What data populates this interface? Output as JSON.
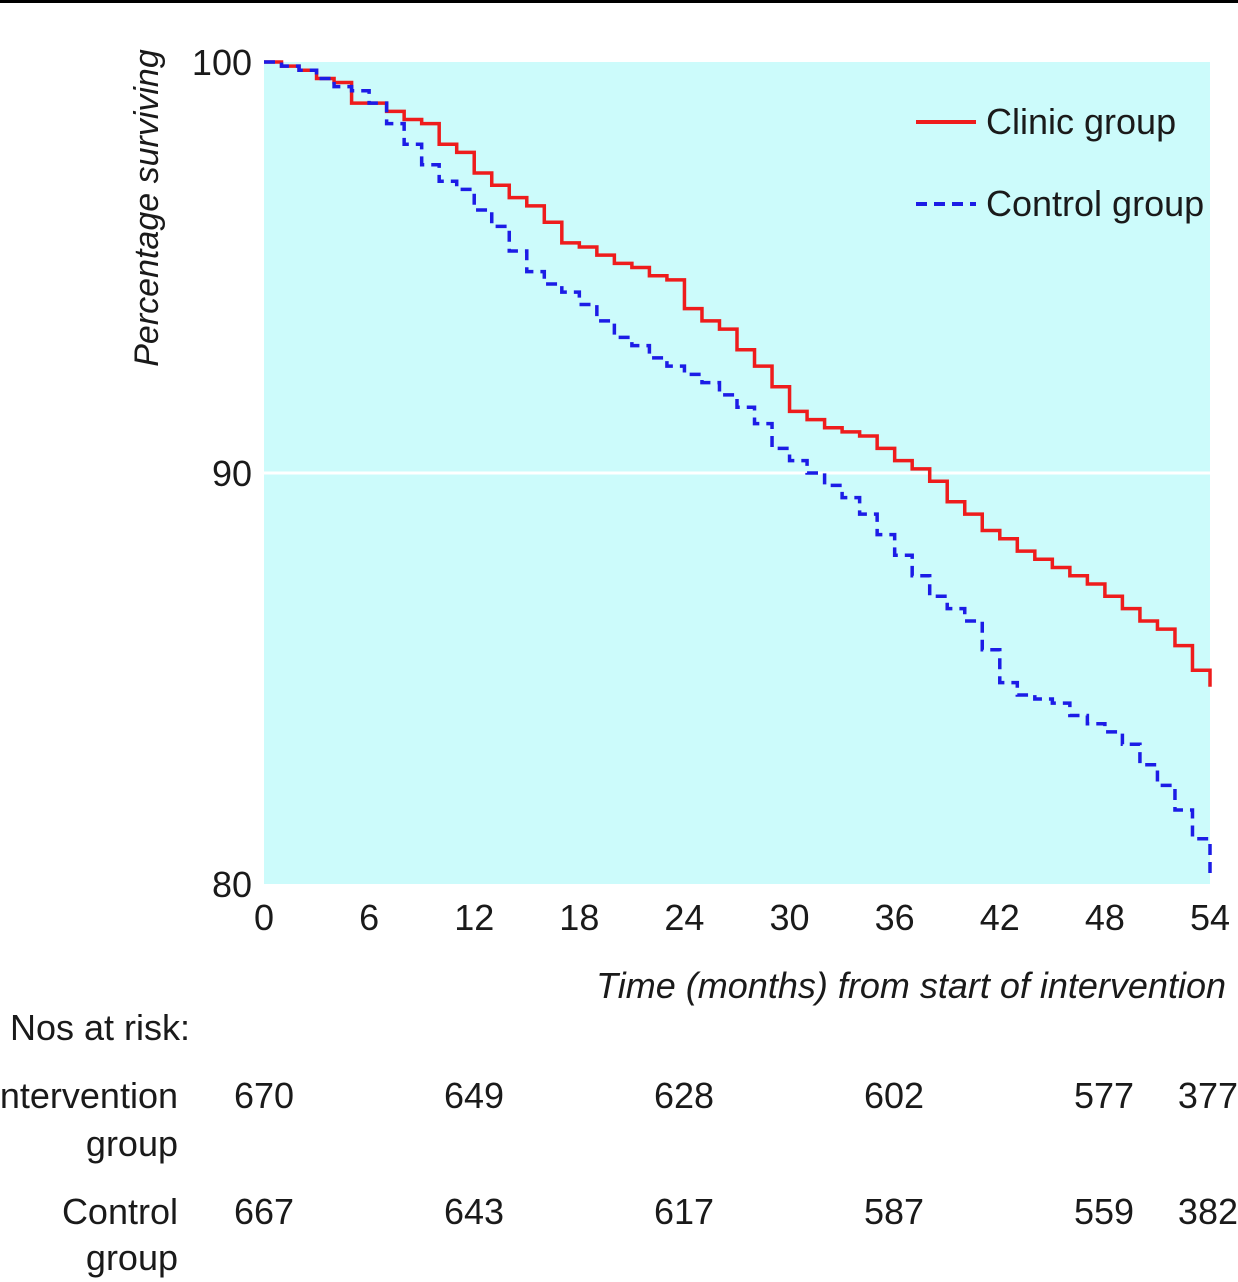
{
  "chart_data": {
    "type": "line",
    "title": "",
    "xlabel": "Time (months) from start of intervention",
    "ylabel": "Percentage surviving",
    "xlim": [
      0,
      54
    ],
    "ylim": [
      80,
      100
    ],
    "x_ticks": [
      0,
      6,
      12,
      18,
      24,
      30,
      36,
      42,
      48,
      54
    ],
    "y_ticks": [
      80,
      90,
      100
    ],
    "gridlines_y": [
      90
    ],
    "legend": "top-right",
    "background_color": "#ccfbfb",
    "series": [
      {
        "name": "Clinic group",
        "color": "#ee1c1c",
        "style": "solid",
        "points": [
          [
            0,
            100
          ],
          [
            1,
            99.9
          ],
          [
            2,
            99.8
          ],
          [
            3,
            99.6
          ],
          [
            4,
            99.5
          ],
          [
            5,
            99.0
          ],
          [
            6,
            99.0
          ],
          [
            7,
            98.8
          ],
          [
            8,
            98.6
          ],
          [
            9,
            98.5
          ],
          [
            10,
            98.0
          ],
          [
            11,
            97.8
          ],
          [
            12,
            97.3
          ],
          [
            13,
            97.0
          ],
          [
            14,
            96.7
          ],
          [
            15,
            96.5
          ],
          [
            16,
            96.1
          ],
          [
            17,
            95.6
          ],
          [
            18,
            95.5
          ],
          [
            19,
            95.3
          ],
          [
            20,
            95.1
          ],
          [
            21,
            95.0
          ],
          [
            22,
            94.8
          ],
          [
            23,
            94.7
          ],
          [
            24,
            94.0
          ],
          [
            25,
            93.7
          ],
          [
            26,
            93.5
          ],
          [
            27,
            93.0
          ],
          [
            28,
            92.6
          ],
          [
            29,
            92.1
          ],
          [
            30,
            91.5
          ],
          [
            31,
            91.3
          ],
          [
            32,
            91.1
          ],
          [
            33,
            91.0
          ],
          [
            34,
            90.9
          ],
          [
            35,
            90.6
          ],
          [
            36,
            90.3
          ],
          [
            37,
            90.1
          ],
          [
            38,
            89.8
          ],
          [
            39,
            89.3
          ],
          [
            40,
            89.0
          ],
          [
            41,
            88.6
          ],
          [
            42,
            88.4
          ],
          [
            43,
            88.1
          ],
          [
            44,
            87.9
          ],
          [
            45,
            87.7
          ],
          [
            46,
            87.5
          ],
          [
            47,
            87.3
          ],
          [
            48,
            87.0
          ],
          [
            49,
            86.7
          ],
          [
            50,
            86.4
          ],
          [
            51,
            86.2
          ],
          [
            52,
            85.8
          ],
          [
            53,
            85.2
          ],
          [
            54,
            84.8
          ]
        ]
      },
      {
        "name": "Control group",
        "color": "#1c1ce6",
        "style": "dashed",
        "points": [
          [
            0,
            100
          ],
          [
            1,
            99.9
          ],
          [
            2,
            99.8
          ],
          [
            3,
            99.6
          ],
          [
            4,
            99.4
          ],
          [
            5,
            99.3
          ],
          [
            6,
            99.0
          ],
          [
            7,
            98.5
          ],
          [
            8,
            98.0
          ],
          [
            9,
            97.5
          ],
          [
            10,
            97.1
          ],
          [
            11,
            96.9
          ],
          [
            12,
            96.4
          ],
          [
            13,
            96.0
          ],
          [
            14,
            95.4
          ],
          [
            15,
            94.9
          ],
          [
            16,
            94.6
          ],
          [
            17,
            94.4
          ],
          [
            18,
            94.1
          ],
          [
            19,
            93.7
          ],
          [
            20,
            93.3
          ],
          [
            21,
            93.1
          ],
          [
            22,
            92.8
          ],
          [
            23,
            92.6
          ],
          [
            24,
            92.4
          ],
          [
            25,
            92.2
          ],
          [
            26,
            91.9
          ],
          [
            27,
            91.6
          ],
          [
            28,
            91.2
          ],
          [
            29,
            90.6
          ],
          [
            30,
            90.3
          ],
          [
            31,
            90.0
          ],
          [
            32,
            89.7
          ],
          [
            33,
            89.4
          ],
          [
            34,
            89.0
          ],
          [
            35,
            88.5
          ],
          [
            36,
            88.0
          ],
          [
            37,
            87.5
          ],
          [
            38,
            87.0
          ],
          [
            39,
            86.7
          ],
          [
            40,
            86.4
          ],
          [
            41,
            85.7
          ],
          [
            42,
            84.9
          ],
          [
            43,
            84.6
          ],
          [
            44,
            84.5
          ],
          [
            45,
            84.4
          ],
          [
            46,
            84.1
          ],
          [
            47,
            83.9
          ],
          [
            48,
            83.7
          ],
          [
            49,
            83.4
          ],
          [
            50,
            82.9
          ],
          [
            51,
            82.4
          ],
          [
            52,
            81.8
          ],
          [
            53,
            81.1
          ],
          [
            54,
            80.2
          ]
        ]
      }
    ],
    "risk_table": {
      "heading": "Nos at risk:",
      "times": [
        0,
        12,
        24,
        36,
        48,
        54
      ],
      "rows": [
        {
          "label_line1": "Intervention",
          "label_line2": "group",
          "values": [
            "670",
            "649",
            "628",
            "602",
            "577",
            "377"
          ]
        },
        {
          "label_line1": "Control",
          "label_line2": "group",
          "values": [
            "667",
            "643",
            "617",
            "587",
            "559",
            "382"
          ]
        }
      ]
    }
  }
}
